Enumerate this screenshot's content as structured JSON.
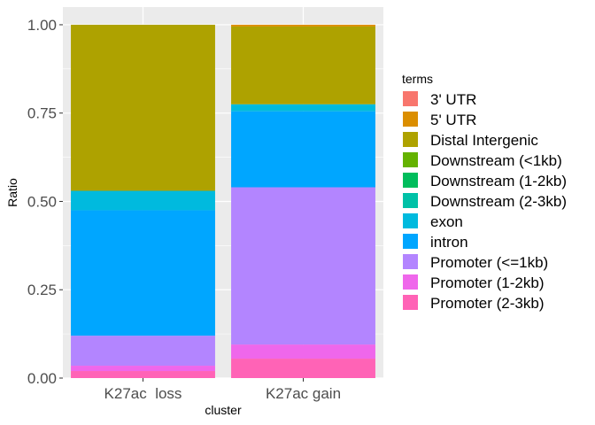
{
  "chart_data": {
    "type": "bar",
    "stacked": true,
    "title": "",
    "xlabel": "cluster",
    "ylabel": "Ratio",
    "ylim": [
      0,
      1.05
    ],
    "yticks": [
      "0.00",
      "0.25",
      "0.50",
      "0.75",
      "1.00"
    ],
    "categories": [
      "K27ac  loss",
      "K27ac gain"
    ],
    "legend_title": "terms",
    "legend_position": "right",
    "grid": true,
    "series": [
      {
        "name": "3' UTR",
        "color": "#F8766D",
        "values": [
          0.0,
          0.0
        ]
      },
      {
        "name": "5' UTR",
        "color": "#DB8E00",
        "values": [
          0.0,
          0.005
        ]
      },
      {
        "name": "Distal Intergenic",
        "color": "#AEA200",
        "values": [
          0.47,
          0.22
        ]
      },
      {
        "name": "Downstream (<1kb)",
        "color": "#64B200",
        "values": [
          0.0,
          0.0
        ]
      },
      {
        "name": "Downstream (1-2kb)",
        "color": "#00BD5C",
        "values": [
          0.0,
          0.0
        ]
      },
      {
        "name": "Downstream (2-3kb)",
        "color": "#00C1A7",
        "values": [
          0.0,
          0.0
        ]
      },
      {
        "name": "exon",
        "color": "#00BADE",
        "values": [
          0.055,
          0.02
        ]
      },
      {
        "name": "intron",
        "color": "#00A6FF",
        "values": [
          0.355,
          0.215
        ]
      },
      {
        "name": "Promoter (<=1kb)",
        "color": "#B385FF",
        "values": [
          0.085,
          0.445
        ]
      },
      {
        "name": "Promoter (1-2kb)",
        "color": "#EF67EB",
        "values": [
          0.015,
          0.04
        ]
      },
      {
        "name": "Promoter (2-3kb)",
        "color": "#FF63B6",
        "values": [
          0.02,
          0.055
        ]
      }
    ]
  }
}
